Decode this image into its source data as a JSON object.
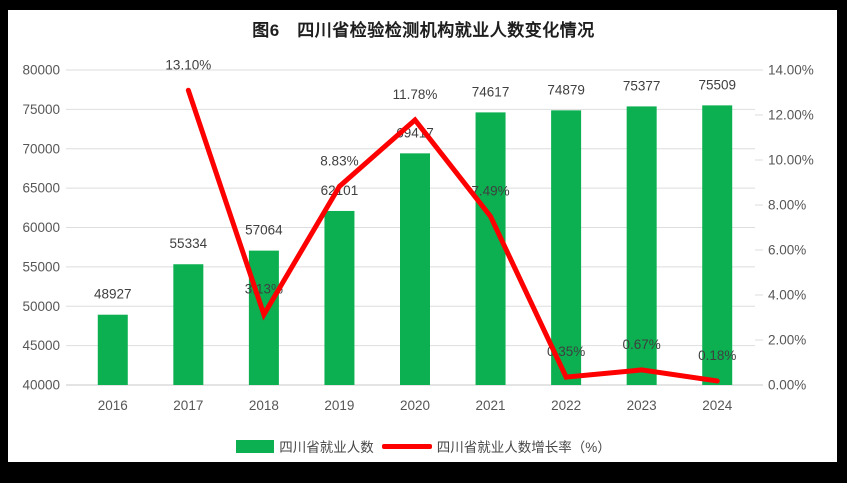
{
  "frame": {
    "border_color": "#000000",
    "panel_color": "#ffffff"
  },
  "chart_data": {
    "type": "bar",
    "combo": "bar+line",
    "title": "图6　四川省检验检测机构就业人数变化情况",
    "categories": [
      "2016",
      "2017",
      "2018",
      "2019",
      "2020",
      "2021",
      "2022",
      "2023",
      "2024"
    ],
    "series": [
      {
        "name": "四川省就业人数",
        "type": "bar",
        "axis": "left",
        "color": "#0CB051",
        "values": [
          48927,
          55334,
          57064,
          62101,
          69417,
          74617,
          74879,
          75377,
          75509
        ],
        "labels": [
          "48927",
          "55334",
          "57064",
          "62101",
          "69417",
          "74617",
          "74879",
          "75377",
          "75509"
        ]
      },
      {
        "name": "四川省就业人数增长率（%）",
        "type": "line",
        "axis": "right",
        "color": "#FE0000",
        "values": [
          null,
          13.1,
          3.13,
          8.83,
          11.78,
          7.49,
          0.35,
          0.67,
          0.18
        ],
        "labels": [
          "",
          "13.10%",
          "3.13%",
          "8.83%",
          "11.78%",
          "7.49%",
          "0.35%",
          "0.67%",
          "0.18%"
        ]
      }
    ],
    "left_axis": {
      "min": 40000,
      "max": 80000,
      "step": 5000,
      "tick_labels": [
        "40000",
        "45000",
        "50000",
        "55000",
        "60000",
        "65000",
        "70000",
        "75000",
        "80000"
      ]
    },
    "right_axis": {
      "min": 0,
      "max": 14,
      "step": 2,
      "tick_labels": [
        "0.00%",
        "2.00%",
        "4.00%",
        "6.00%",
        "8.00%",
        "10.00%",
        "12.00%",
        "14.00%"
      ]
    },
    "grid": true,
    "legend_position": "bottom"
  }
}
